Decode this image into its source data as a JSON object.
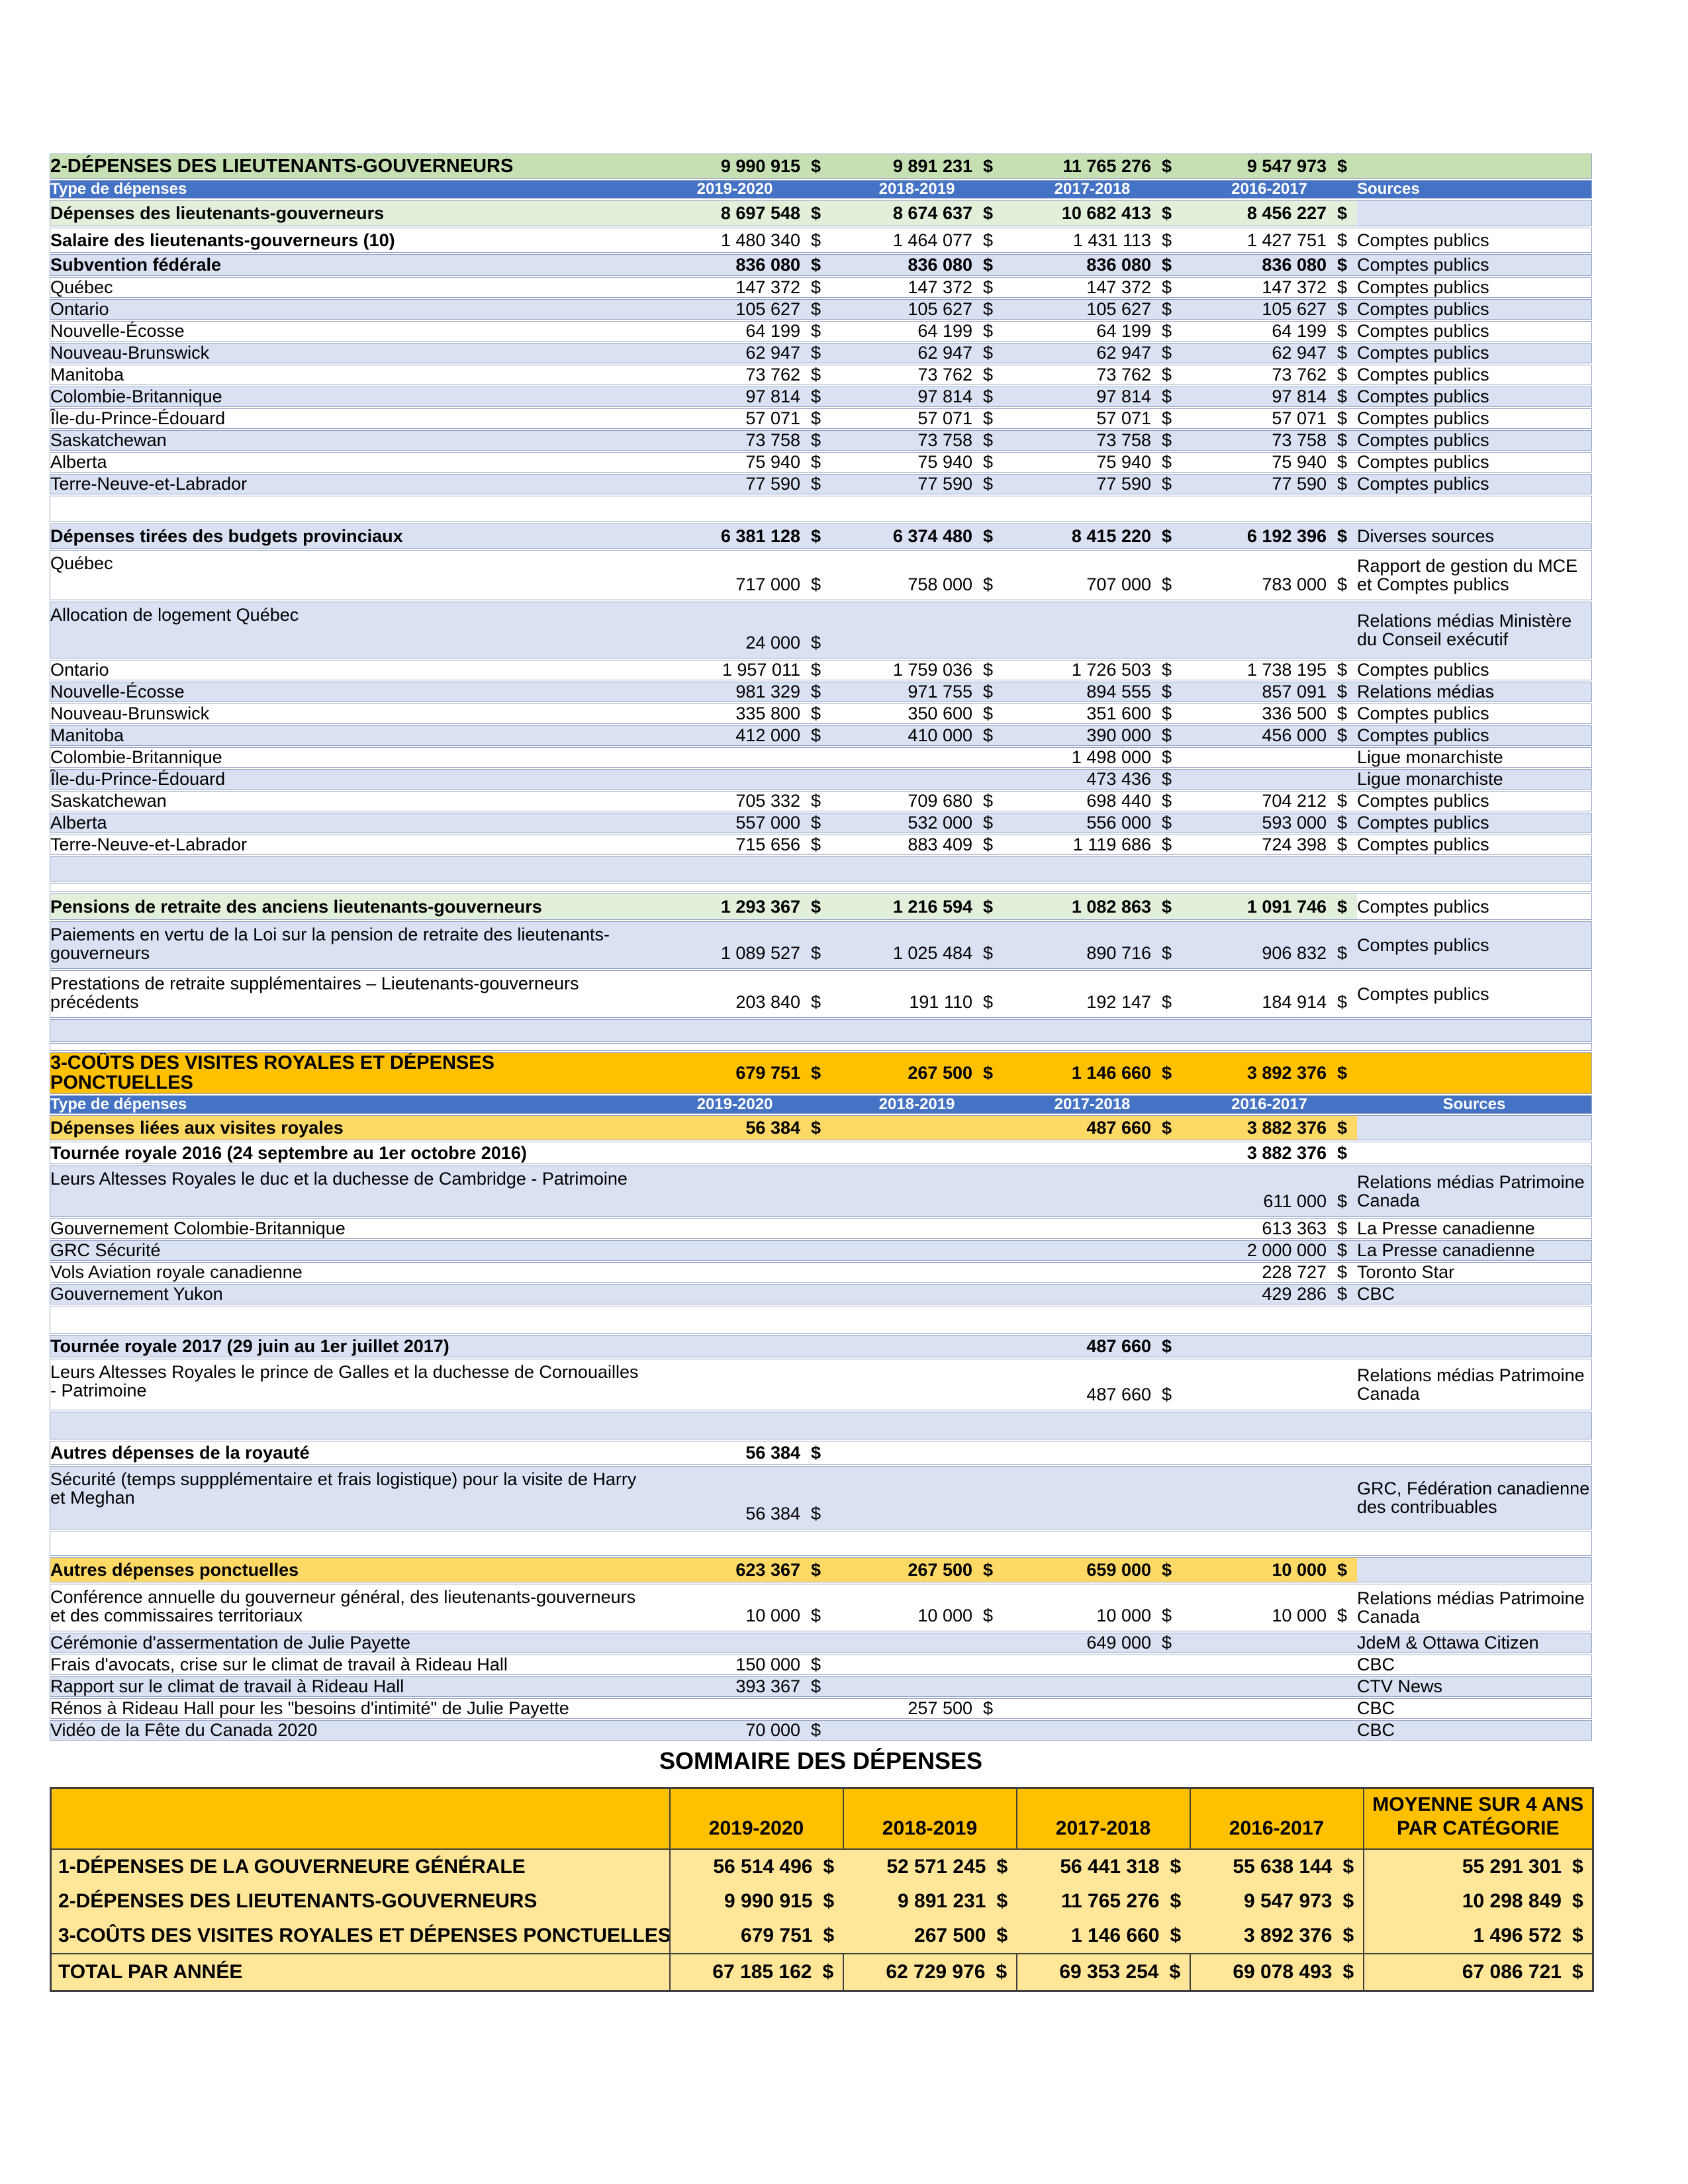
{
  "annotations": {
    "asterisk": "*"
  },
  "colors": {
    "green_header": "#C6E0B4",
    "green_total": "#E2EFDA",
    "blue_header": "#4472C4",
    "row_band": "#D9E1F2",
    "amber_header": "#FFC000",
    "amber_subheader": "#FFD966",
    "summary_body": "#FFE699"
  },
  "main_table": {
    "rows": [
      {
        "t": "green-title",
        "h": 38,
        "label": "2-DÉPENSES DES LIEUTENANTS-GOUVERNEURS",
        "v": [
          "9 990 915",
          "9 891 231",
          "11 765 276",
          "9 547 973"
        ],
        "vb": true,
        "src": ""
      },
      {
        "t": "blue-head",
        "h": 28,
        "label": "Type de dépenses",
        "v": [
          "2019-2020",
          "2018-2019",
          "2017-2018",
          "2016-2017"
        ],
        "src": "Sources"
      },
      {
        "t": "green-total",
        "h": 40,
        "label": "Dépenses des lieutenants-gouverneurs",
        "v": [
          "8 697 548",
          "8 674 637",
          "10 682 413",
          "8 456 227"
        ],
        "vb": true,
        "src": "",
        "sb": true
      },
      {
        "t": "white",
        "h": 38,
        "lb": true,
        "label": "Salaire des lieutenants-gouverneurs (10)",
        "v": [
          "1 480 340",
          "1 464 077",
          "1 431 113",
          "1 427 751"
        ],
        "src": "Comptes publics"
      },
      {
        "t": "band",
        "h": 33,
        "lb": true,
        "vb": true,
        "label": "Subvention fédérale",
        "v": [
          "836 080",
          "836 080",
          "836 080",
          "836 080"
        ],
        "src": "Comptes publics"
      },
      {
        "t": "white",
        "h": 31,
        "label": "Québec",
        "v": [
          "147 372",
          "147 372",
          "147 372",
          "147 372"
        ],
        "src": "Comptes publics"
      },
      {
        "t": "band",
        "h": 31,
        "label": "Ontario",
        "v": [
          "105 627",
          "105 627",
          "105 627",
          "105 627"
        ],
        "src": "Comptes publics"
      },
      {
        "t": "white",
        "h": 31,
        "label": "Nouvelle-Écosse",
        "v": [
          "64 199",
          "64 199",
          "64 199",
          "64 199"
        ],
        "src": "Comptes publics"
      },
      {
        "t": "band",
        "h": 31,
        "label": "Nouveau-Brunswick",
        "v": [
          "62 947",
          "62 947",
          "62 947",
          "62 947"
        ],
        "src": "Comptes publics"
      },
      {
        "t": "white",
        "h": 31,
        "label": "Manitoba",
        "v": [
          "73 762",
          "73 762",
          "73 762",
          "73 762"
        ],
        "src": "Comptes publics"
      },
      {
        "t": "band",
        "h": 31,
        "label": "Colombie-Britannique",
        "v": [
          "97 814",
          "97 814",
          "97 814",
          "97 814"
        ],
        "src": "Comptes publics"
      },
      {
        "t": "white",
        "h": 31,
        "label": "Île-du-Prince-Édouard",
        "v": [
          "57 071",
          "57 071",
          "57 071",
          "57 071"
        ],
        "src": "Comptes publics"
      },
      {
        "t": "band",
        "h": 31,
        "label": "Saskatchewan",
        "v": [
          "73 758",
          "73 758",
          "73 758",
          "73 758"
        ],
        "src": "Comptes publics"
      },
      {
        "t": "white",
        "h": 31,
        "label": "Alberta",
        "v": [
          "75 940",
          "75 940",
          "75 940",
          "75 940"
        ],
        "src": "Comptes publics"
      },
      {
        "t": "band",
        "h": 31,
        "label": "Terre-Neuve-et-Labrador",
        "v": [
          "77 590",
          "77 590",
          "77 590",
          "77 590"
        ],
        "src": "Comptes publics"
      },
      {
        "t": "spacer",
        "h": 40
      },
      {
        "t": "band",
        "h": 38,
        "lb": true,
        "vb": true,
        "label": "Dépenses tirées des budgets provinciaux",
        "v": [
          "6 381 128",
          "6 374 480",
          "8 415 220",
          "6 192 396"
        ],
        "src": "Diverses sources"
      },
      {
        "t": "white",
        "h": 76,
        "tall": true,
        "label": "Québec",
        "v": [
          "717 000",
          "758 000",
          "707 000",
          "783 000"
        ],
        "src": "Rapport de gestion du MCE et Comptes publics"
      },
      {
        "t": "band",
        "h": 86,
        "tall": true,
        "label": "Allocation de logement Québec",
        "v": [
          "24 000",
          "",
          "",
          ""
        ],
        "src": "Relations médias Ministère du Conseil exécutif",
        "ast": true
      },
      {
        "t": "white",
        "h": 31,
        "label": "Ontario",
        "v": [
          "1 957 011",
          "1 759 036",
          "1 726 503",
          "1 738 195"
        ],
        "src": "Comptes publics"
      },
      {
        "t": "band",
        "h": 31,
        "label": "Nouvelle-Écosse",
        "v": [
          "981 329",
          "971 755",
          "894 555",
          "857 091"
        ],
        "src": "Relations médias"
      },
      {
        "t": "white",
        "h": 31,
        "label": "Nouveau-Brunswick",
        "v": [
          "335 800",
          "350 600",
          "351 600",
          "336 500"
        ],
        "src": "Comptes publics"
      },
      {
        "t": "band",
        "h": 31,
        "label": "Manitoba",
        "v": [
          "412 000",
          "410 000",
          "390 000",
          "456 000"
        ],
        "src": "Comptes publics"
      },
      {
        "t": "white",
        "h": 31,
        "label": "Colombie-Britannique",
        "v": [
          "",
          "",
          "1 498 000",
          ""
        ],
        "src": "Ligue monarchiste"
      },
      {
        "t": "band",
        "h": 31,
        "label": "Île-du-Prince-Édouard",
        "v": [
          "",
          "",
          "473 436",
          ""
        ],
        "src": "Ligue monarchiste"
      },
      {
        "t": "white",
        "h": 31,
        "label": "Saskatchewan",
        "v": [
          "705 332",
          "709 680",
          "698 440",
          "704 212"
        ],
        "src": "Comptes publics"
      },
      {
        "t": "band",
        "h": 31,
        "label": "Alberta",
        "v": [
          "557 000",
          "532 000",
          "556 000",
          "593 000"
        ],
        "src": "Comptes publics"
      },
      {
        "t": "white",
        "h": 31,
        "label": "Terre-Neuve-et-Labrador",
        "v": [
          "715 656",
          "883 409",
          "1 119 686",
          "724 398"
        ],
        "src": "Comptes publics"
      },
      {
        "t": "spacer-band",
        "h": 38
      },
      {
        "t": "spacer",
        "h": 14
      },
      {
        "t": "green-total",
        "h": 40,
        "label": "Pensions de retraite des anciens lieutenants-gouverneurs",
        "v": [
          "1 293 367",
          "1 216 594",
          "1 082 863",
          "1 091 746"
        ],
        "vb": true,
        "src": "Comptes publics"
      },
      {
        "t": "band",
        "h": 72,
        "tall": true,
        "label": "Paiements en vertu de la Loi sur la pension de retraite des lieutenants-gouverneurs",
        "v": [
          "1 089 527",
          "1 025 484",
          "890 716",
          "906 832"
        ],
        "src": "Comptes publics"
      },
      {
        "t": "white",
        "h": 72,
        "tall": true,
        "label": "Prestations de retraite supplémentaires – Lieutenants-gouverneurs précédents",
        "v": [
          "203 840",
          "191 110",
          "192 147",
          "184 914"
        ],
        "src": "Comptes publics"
      },
      {
        "t": "spacer-band",
        "h": 34
      },
      {
        "t": "spacer",
        "h": 12
      },
      {
        "t": "amber-title",
        "h": 38,
        "label": "3-COÛTS DES VISITES ROYALES ET DÉPENSES PONCTUELLES",
        "v": [
          "679 751",
          "267 500",
          "1 146 660",
          "3 892 376"
        ],
        "vb": true,
        "src": ""
      },
      {
        "t": "blue-head",
        "h": 28,
        "label": "Type de dépenses",
        "v": [
          "2019-2020",
          "2018-2019",
          "2017-2018",
          "2016-2017"
        ],
        "src": "Sources",
        "srcCenter": true
      },
      {
        "t": "amber-sub",
        "h": 38,
        "label": "Dépenses liées aux visites royales",
        "v": [
          "56 384",
          "",
          "487 660",
          "3 882 376"
        ],
        "src": ""
      },
      {
        "t": "white",
        "h": 34,
        "lb": true,
        "vb": true,
        "label": "Tournée royale 2016 (24 septembre au 1er octobre 2016)",
        "v": [
          "",
          "",
          "",
          "3 882 376"
        ],
        "src": ""
      },
      {
        "t": "band",
        "h": 78,
        "tall": true,
        "label": "Leurs Altesses Royales le duc et la duchesse de Cambridge - Patrimoine",
        "v": [
          "",
          "",
          "",
          "611 000"
        ],
        "src": "Relations médias Patrimoine Canada"
      },
      {
        "t": "white",
        "h": 31,
        "label": "Gouvernement Colombie-Britannique",
        "v": [
          "",
          "",
          "",
          "613 363"
        ],
        "src": "La Presse canadienne"
      },
      {
        "t": "band",
        "h": 31,
        "label": "GRC Sécurité",
        "v": [
          "",
          "",
          "",
          "2 000 000"
        ],
        "src": "La Presse canadienne"
      },
      {
        "t": "white",
        "h": 31,
        "label": "Vols Aviation royale canadienne",
        "v": [
          "",
          "",
          "",
          "228 727"
        ],
        "src": "Toronto Star"
      },
      {
        "t": "band",
        "h": 31,
        "label": "Gouvernement Yukon",
        "v": [
          "",
          "",
          "",
          "429 286"
        ],
        "src": "CBC"
      },
      {
        "t": "spacer",
        "h": 42
      },
      {
        "t": "band",
        "h": 34,
        "lb": true,
        "vb": true,
        "label": "Tournée royale 2017 (29 juin au 1er juillet 2017)",
        "v": [
          "",
          "",
          "487 660",
          ""
        ],
        "src": ""
      },
      {
        "t": "white",
        "h": 78,
        "tall": true,
        "label": "Leurs Altesses Royales le prince de Galles et la duchesse de Cornouailles - Patrimoine",
        "v": [
          "",
          "",
          "487 660",
          ""
        ],
        "src": "Relations médias Patrimoine Canada"
      },
      {
        "t": "spacer-band",
        "h": 42
      },
      {
        "t": "white",
        "h": 36,
        "lb": true,
        "vb": true,
        "label": "Autres dépenses de la royauté",
        "v": [
          "56 384",
          "",
          "",
          ""
        ],
        "src": ""
      },
      {
        "t": "band",
        "h": 96,
        "tall": true,
        "label": "Sécurité (temps suppplémentaire et frais logistique) pour la visite de Harry et Meghan",
        "v": [
          "56 384",
          "",
          "",
          ""
        ],
        "src": "GRC, Fédération canadienne des contribuables"
      },
      {
        "t": "spacer",
        "h": 38
      },
      {
        "t": "amber-sub",
        "h": 38,
        "label": "Autres dépenses ponctuelles",
        "v": [
          "623 367",
          "267 500",
          "659 000",
          "10 000"
        ],
        "src": ""
      },
      {
        "t": "white",
        "h": 72,
        "tall": true,
        "label": "Conférence annuelle du gouverneur général, des lieutenants-gouverneurs et des commissaires territoriaux",
        "v": [
          "10 000",
          "10 000",
          "10 000",
          "10 000"
        ],
        "src": "Relations médias Patrimoine Canada"
      },
      {
        "t": "band",
        "h": 31,
        "label": "Cérémonie d'assermentation de Julie Payette",
        "v": [
          "",
          "",
          "649 000",
          ""
        ],
        "src": "JdeM & Ottawa Citizen"
      },
      {
        "t": "white",
        "h": 31,
        "label": "Frais d'avocats, crise sur le climat de travail à Rideau Hall",
        "v": [
          "150 000",
          "",
          "",
          ""
        ],
        "src": "CBC"
      },
      {
        "t": "band",
        "h": 31,
        "label": "Rapport sur le climat de travail à Rideau Hall",
        "v": [
          "393 367",
          "",
          "",
          ""
        ],
        "src": "CTV News"
      },
      {
        "t": "white",
        "h": 31,
        "label": "Rénos à Rideau Hall pour les \"besoins d'intimité\" de Julie Payette",
        "v": [
          "",
          "257 500",
          "",
          ""
        ],
        "src": "CBC"
      },
      {
        "t": "band",
        "h": 31,
        "label": "Vidéo de la Fête du Canada 2020",
        "v": [
          "70 000",
          "",
          "",
          ""
        ],
        "src": "CBC"
      }
    ]
  },
  "summary": {
    "title": "SOMMAIRE DES DÉPENSES",
    "col_headers": [
      "",
      "2019-2020",
      "2018-2019",
      "2017-2018",
      "2016-2017",
      "MOYENNE SUR 4 ANS PAR CATÉGORIE"
    ],
    "rows": [
      {
        "label": "1-DÉPENSES DE LA GOUVERNEURE GÉNÉRALE",
        "v": [
          "56 514 496",
          "52 571 245",
          "56 441 318",
          "55 638 144",
          "55 291 301"
        ]
      },
      {
        "label": "2-DÉPENSES DES LIEUTENANTS-GOUVERNEURS",
        "v": [
          "9 990 915",
          "9 891 231",
          "11 765 276",
          "9 547 973",
          "10 298 849"
        ]
      },
      {
        "label": "3-COÛTS DES VISITES ROYALES ET DÉPENSES PONCTUELLES",
        "v": [
          "679 751",
          "267 500",
          "1 146 660",
          "3 892 376",
          "1 496 572"
        ]
      }
    ],
    "total_row": {
      "label": "TOTAL PAR ANNÉE",
      "v": [
        "67 185 162",
        "62 729 976",
        "69 353 254",
        "69 078 493",
        "67 086 721"
      ]
    }
  }
}
